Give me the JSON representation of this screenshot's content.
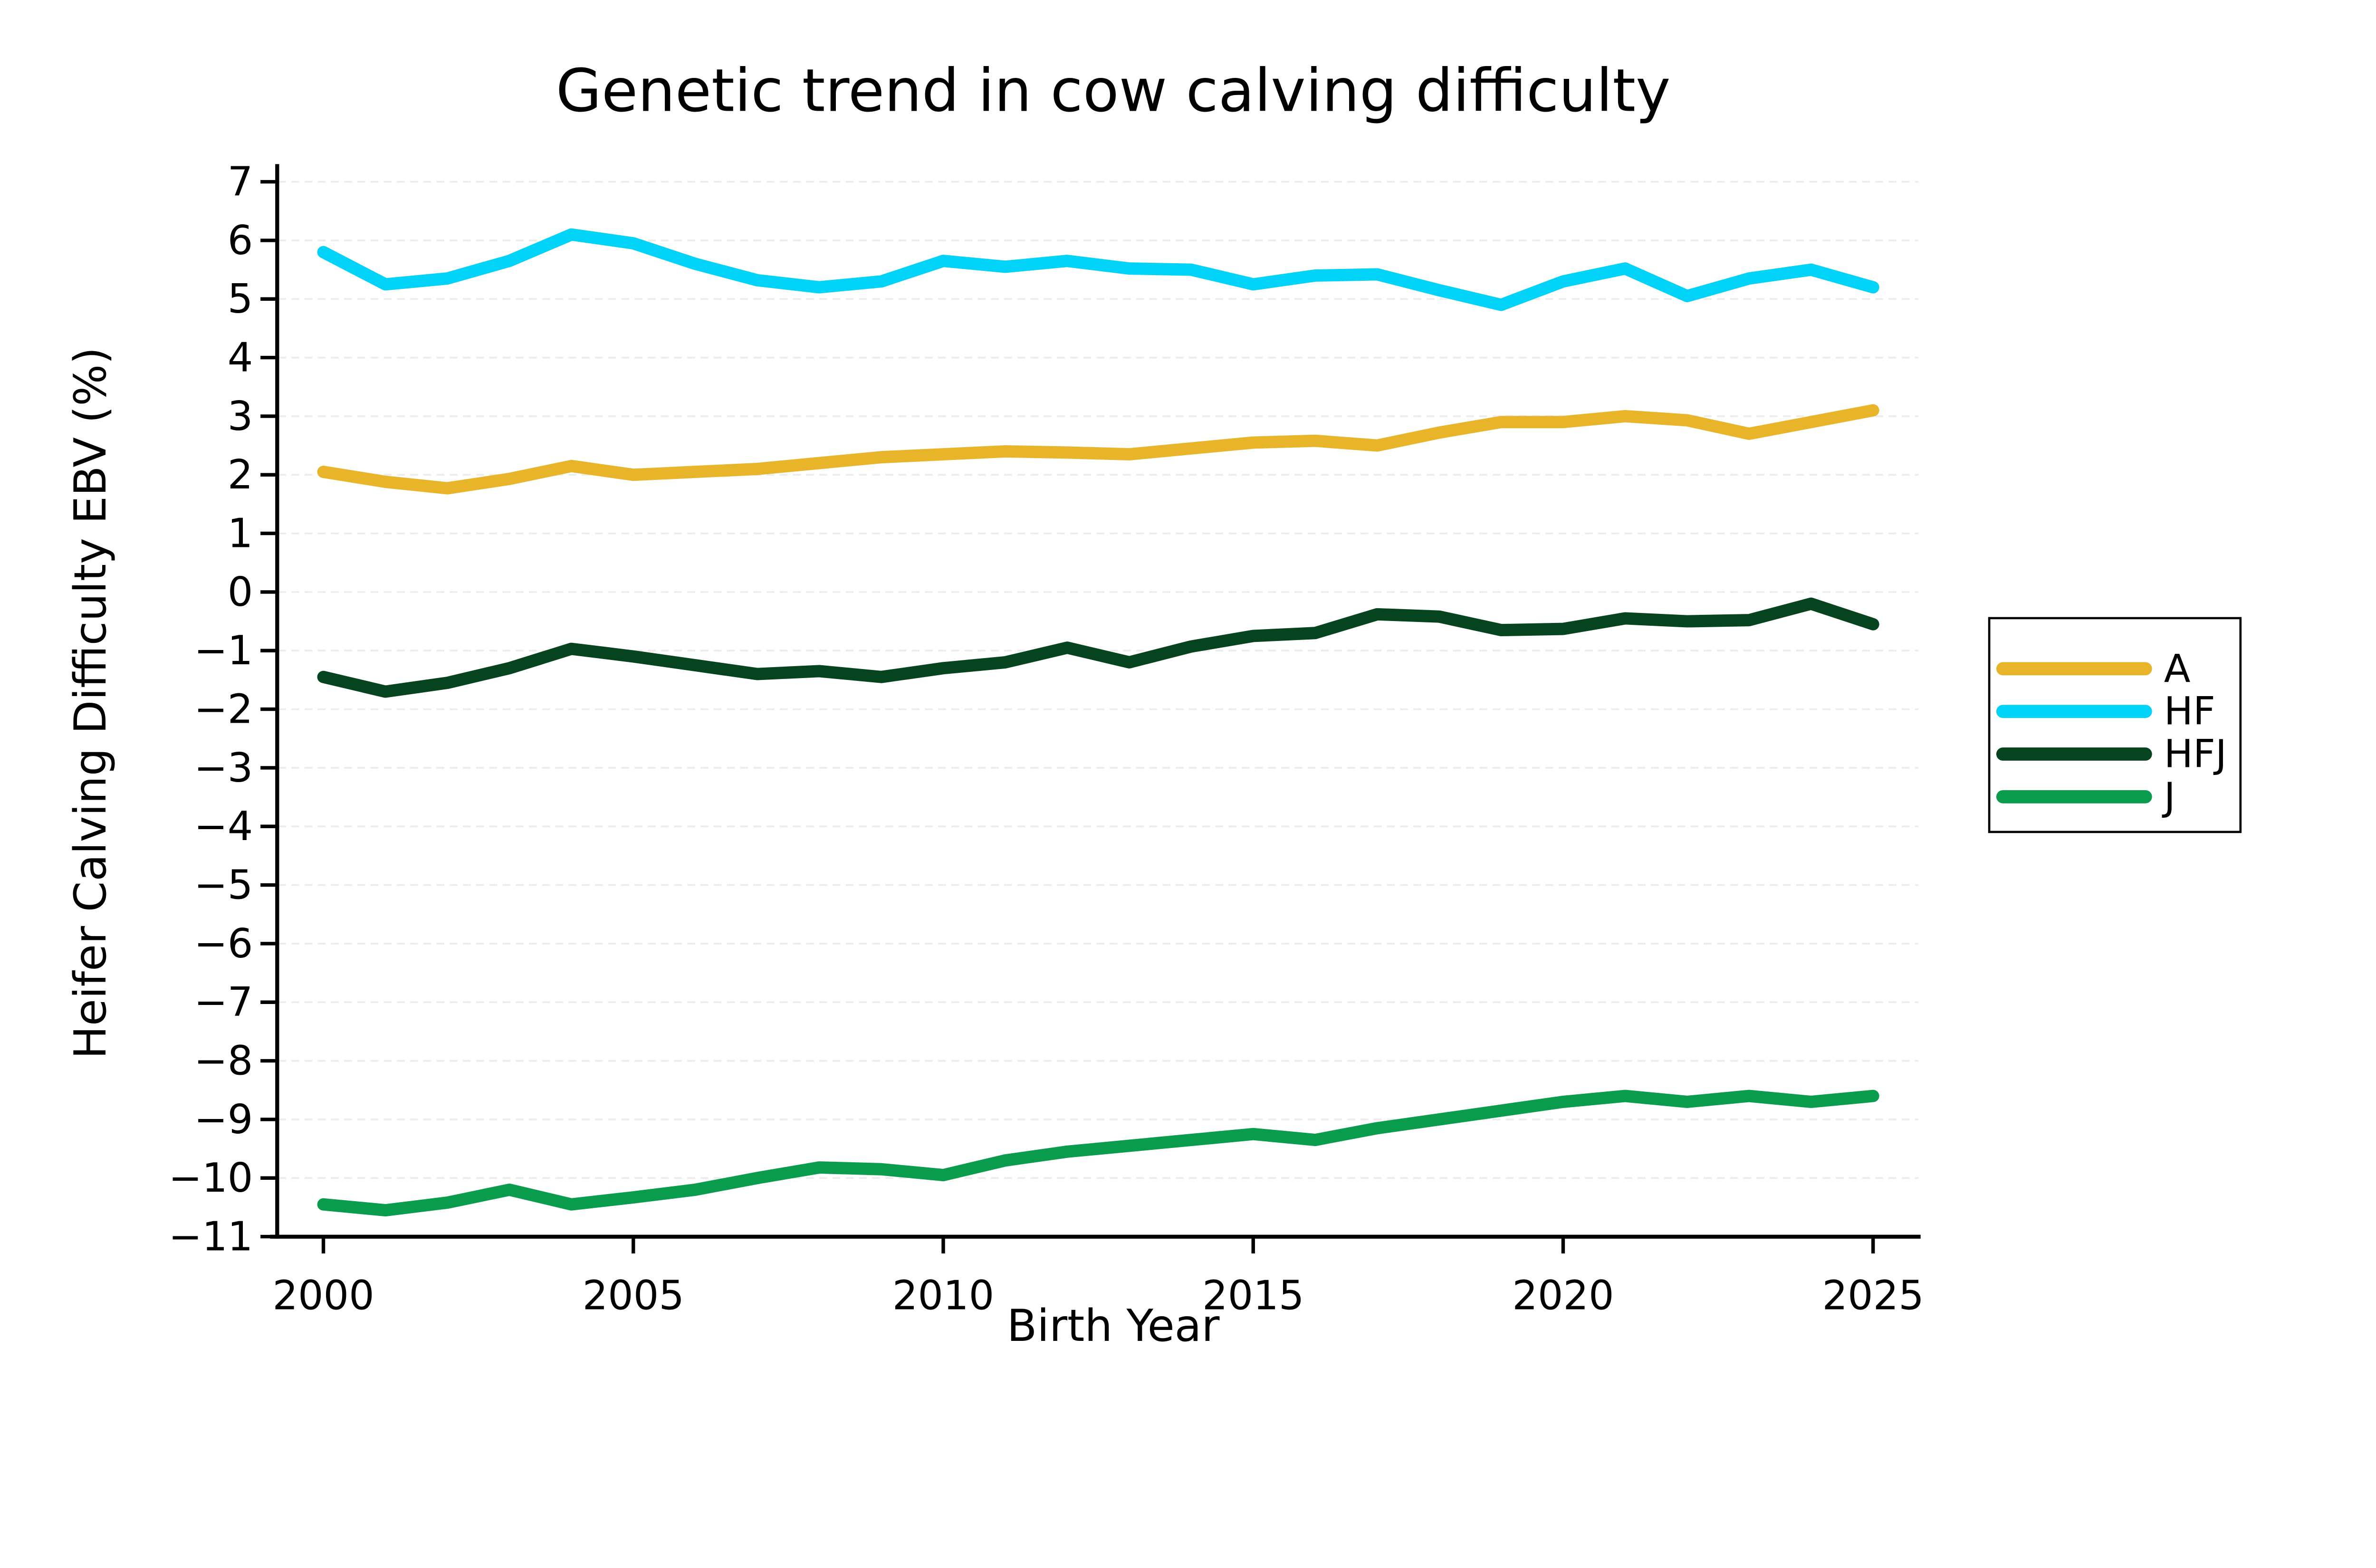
{
  "chart_data": {
    "type": "line",
    "title": "Genetic trend in cow calving difficulty",
    "xlabel": "Birth Year",
    "ylabel": "Heifer Calving Difficulty EBV (%)",
    "grid": true,
    "legend_position": "right",
    "x": [
      2000,
      2001,
      2002,
      2003,
      2004,
      2005,
      2006,
      2007,
      2008,
      2009,
      2010,
      2011,
      2012,
      2013,
      2014,
      2015,
      2016,
      2017,
      2018,
      2019,
      2020,
      2021,
      2022,
      2023,
      2024,
      2025
    ],
    "x_ticks": [
      2000,
      2005,
      2010,
      2015,
      2020,
      2025
    ],
    "y_ticks": [
      7,
      6,
      5,
      4,
      3,
      2,
      1,
      0,
      -1,
      -2,
      -3,
      -4,
      -5,
      -6,
      -7,
      -8,
      -9,
      -10,
      -11
    ],
    "ylim": [
      -11,
      7.4
    ],
    "xlim": [
      1999.25,
      2025.77
    ],
    "series": [
      {
        "name": "A",
        "color": "#E7B42A",
        "values": [
          2.05,
          1.88,
          1.77,
          1.93,
          2.15,
          2.0,
          2.05,
          2.1,
          2.2,
          2.3,
          2.35,
          2.4,
          2.38,
          2.35,
          2.45,
          2.55,
          2.58,
          2.5,
          2.72,
          2.9,
          2.9,
          3.0,
          2.93,
          2.7,
          2.9,
          3.1
        ]
      },
      {
        "name": "HF",
        "color": "#00D2F8",
        "values": [
          5.8,
          5.25,
          5.35,
          5.65,
          6.1,
          5.95,
          5.6,
          5.32,
          5.2,
          5.3,
          5.65,
          5.55,
          5.65,
          5.52,
          5.5,
          5.25,
          5.4,
          5.42,
          5.15,
          4.9,
          5.3,
          5.52,
          5.05,
          5.35,
          5.5,
          5.2
        ]
      },
      {
        "name": "HFJ",
        "color": "#05441F",
        "values": [
          -1.45,
          -1.7,
          -1.55,
          -1.3,
          -0.97,
          -1.1,
          -1.25,
          -1.4,
          -1.35,
          -1.45,
          -1.3,
          -1.2,
          -0.95,
          -1.2,
          -0.93,
          -0.75,
          -0.7,
          -0.38,
          -0.42,
          -0.65,
          -0.63,
          -0.45,
          -0.5,
          -0.48,
          -0.2,
          -0.55
        ]
      },
      {
        "name": "J",
        "color": "#0A9C4D",
        "values": [
          -10.45,
          -10.55,
          -10.42,
          -10.2,
          -10.45,
          -10.33,
          -10.2,
          -10.0,
          -9.82,
          -9.85,
          -9.95,
          -9.7,
          -9.55,
          -9.45,
          -9.35,
          -9.25,
          -9.35,
          -9.15,
          -9.0,
          -8.85,
          -8.7,
          -8.6,
          -8.7,
          -8.6,
          -8.7,
          -8.6
        ]
      }
    ],
    "legend_labels": [
      "A",
      "HF",
      "HFJ",
      "J"
    ]
  }
}
